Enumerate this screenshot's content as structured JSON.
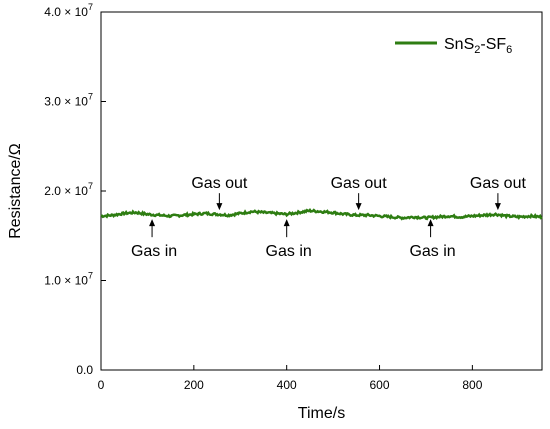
{
  "chart_data": {
    "type": "line",
    "xlabel": "Time/s",
    "ylabel": "Resistance/Ω",
    "xlim": [
      0,
      950
    ],
    "ylim": [
      0,
      40000000
    ],
    "x_ticks": [
      0,
      200,
      400,
      600,
      800
    ],
    "x_tick_labels": [
      "0",
      "200",
      "400",
      "600",
      "800"
    ],
    "y_ticks": [
      {
        "value": 0,
        "mantissa": "0.0",
        "times": "",
        "base": "",
        "exp": ""
      },
      {
        "value": 10000000,
        "mantissa": "1.0",
        "times": "×",
        "base": "10",
        "exp": "7"
      },
      {
        "value": 20000000,
        "mantissa": "2.0",
        "times": "×",
        "base": "10",
        "exp": "7"
      },
      {
        "value": 30000000,
        "mantissa": "3.0",
        "times": "×",
        "base": "10",
        "exp": "7"
      },
      {
        "value": 40000000,
        "mantissa": "4.0",
        "times": "×",
        "base": "10",
        "exp": "7"
      }
    ],
    "legend": {
      "placement": "top-right",
      "label_parts": {
        "a": "SnS",
        "sub1": "2",
        "b": "-SF",
        "sub2": "6"
      }
    },
    "series": [
      {
        "name": "SnS2-SF6",
        "color": "#2e7d12",
        "x": [
          0,
          25,
          50,
          75,
          100,
          125,
          150,
          175,
          200,
          225,
          250,
          275,
          300,
          325,
          350,
          375,
          400,
          425,
          450,
          475,
          500,
          525,
          550,
          575,
          600,
          625,
          650,
          675,
          700,
          725,
          750,
          775,
          800,
          825,
          850,
          875,
          900,
          925,
          950
        ],
        "y": [
          17200000,
          17300000,
          17500000,
          17600000,
          17400000,
          17300000,
          17200000,
          17300000,
          17400000,
          17500000,
          17400000,
          17300000,
          17500000,
          17700000,
          17600000,
          17500000,
          17400000,
          17600000,
          17800000,
          17700000,
          17600000,
          17400000,
          17300000,
          17300000,
          17200000,
          17100000,
          17000000,
          17100000,
          17000000,
          17100000,
          17200000,
          17100000,
          17200000,
          17300000,
          17400000,
          17200000,
          17100000,
          17200000,
          17100000
        ]
      }
    ],
    "annotations": [
      {
        "text": "Gas in",
        "x": 110,
        "direction": "up"
      },
      {
        "text": "Gas out",
        "x": 255,
        "direction": "down"
      },
      {
        "text": "Gas in",
        "x": 400,
        "direction": "up"
      },
      {
        "text": "Gas out",
        "x": 555,
        "direction": "down"
      },
      {
        "text": "Gas in",
        "x": 710,
        "direction": "up"
      },
      {
        "text": "Gas out",
        "x": 855,
        "direction": "down"
      }
    ]
  }
}
